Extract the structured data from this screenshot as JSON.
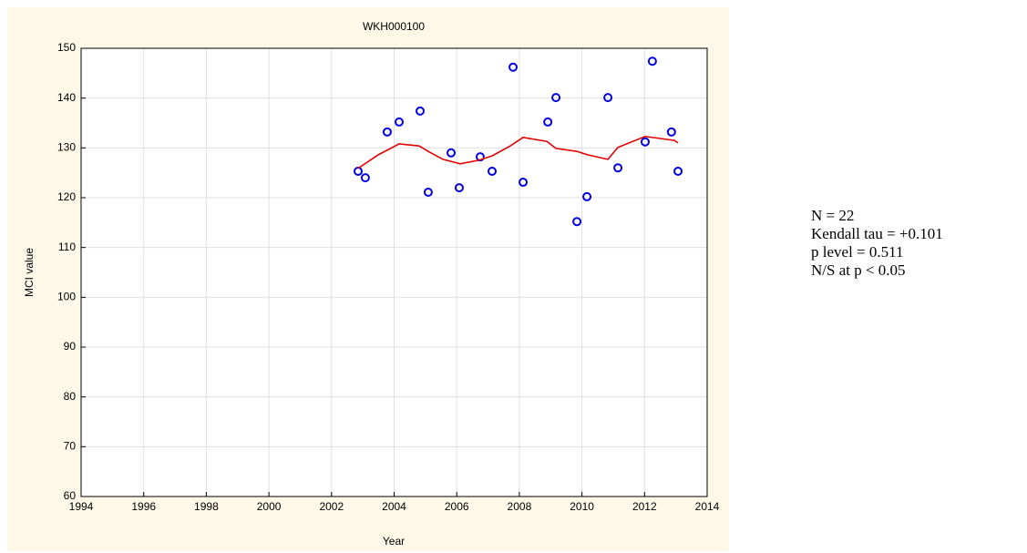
{
  "chart_data": {
    "type": "scatter",
    "title": "WKH000100",
    "x_label": "Year",
    "y_label": "MCI value",
    "xlim": [
      1994,
      2014
    ],
    "xticks": [
      1994,
      1996,
      1998,
      2000,
      2002,
      2004,
      2006,
      2008,
      2010,
      2012,
      2014
    ],
    "ylim": [
      60,
      150
    ],
    "yticks": [
      60,
      70,
      80,
      90,
      100,
      110,
      120,
      130,
      140,
      150
    ],
    "grid": true,
    "series": [
      {
        "name": "MCI",
        "type": "scatter",
        "color": "#0000e0",
        "x": [
          2002.85,
          2003.08,
          2003.78,
          2004.16,
          2004.83,
          2005.09,
          2005.82,
          2006.08,
          2006.75,
          2007.13,
          2007.8,
          2008.12,
          2008.91,
          2009.17,
          2009.84,
          2010.16,
          2010.83,
          2011.15,
          2012.02,
          2012.25,
          2012.86,
          2013.07
        ],
        "values": [
          125.3,
          124.0,
          133.2,
          135.2,
          137.4,
          121.1,
          129.0,
          122.0,
          128.2,
          125.3,
          146.2,
          123.1,
          135.2,
          140.1,
          115.2,
          120.2,
          140.1,
          126.0,
          131.2,
          147.4,
          133.2,
          125.3
        ]
      },
      {
        "name": "Smooth",
        "type": "line",
        "color": "#e00000",
        "x": [
          2002.85,
          2003.49,
          2004.16,
          2004.8,
          2005.09,
          2005.56,
          2006.11,
          2006.69,
          2007.13,
          2007.71,
          2008.12,
          2008.88,
          2009.17,
          2009.84,
          2010.19,
          2010.83,
          2011.15,
          2012.02,
          2012.95,
          2013.07
        ],
        "values": [
          125.9,
          128.6,
          130.8,
          130.4,
          129.3,
          127.7,
          126.8,
          127.5,
          128.4,
          130.4,
          132.1,
          131.3,
          129.9,
          129.3,
          128.6,
          127.7,
          130.1,
          132.3,
          131.5,
          131.0
        ]
      }
    ],
    "annotations": [
      "N = 22",
      "Kendall tau = +0.101",
      "p level = 0.511",
      "N/S at p < 0.05"
    ]
  }
}
